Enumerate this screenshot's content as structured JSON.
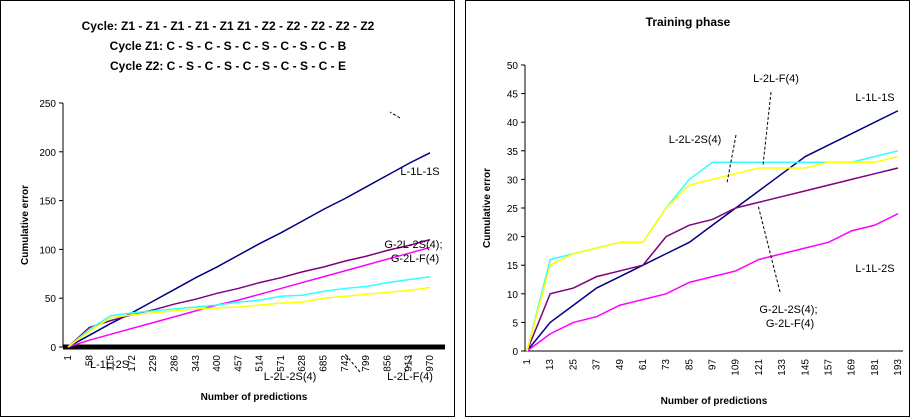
{
  "chart_data": [
    {
      "type": "line",
      "title": [
        "Cycle: Z1 - Z1 - Z1 - Z1 - Z1 Z1 - Z2 - Z2 - Z2 - Z2 - Z2",
        "Cycle Z1: C - S - C - S - C - S - C - S - C - B",
        "Cycle Z2: C - S - C - S - C - S - C - S - C - E"
      ],
      "x_label": "Number of predictions",
      "y_label": "Cumulative error",
      "categories": [
        "1",
        "58",
        "115",
        "172",
        "229",
        "286",
        "343",
        "400",
        "457",
        "514",
        "571",
        "628",
        "685",
        "742",
        "799",
        "856",
        "913",
        "970"
      ],
      "ylim": [
        0,
        250
      ],
      "yticks": [
        0,
        50,
        100,
        150,
        200,
        250
      ],
      "series": [
        {
          "name": "L-1L-1S",
          "color": "#000080",
          "values": [
            0,
            12,
            24,
            35,
            47,
            59,
            71,
            82,
            94,
            106,
            117,
            129,
            141,
            152,
            164,
            176,
            188,
            199
          ]
        },
        {
          "name": "G-2L-2S(4); G-2L-F(4)",
          "color": "#800080",
          "values": [
            0,
            20,
            27,
            33,
            38,
            44,
            49,
            55,
            60,
            66,
            71,
            77,
            82,
            88,
            93,
            99,
            104,
            110
          ]
        },
        {
          "name": "L-1L-2S",
          "color": "#ff00ff",
          "values": [
            0,
            7,
            13,
            19,
            25,
            31,
            37,
            43,
            48,
            54,
            60,
            66,
            72,
            78,
            84,
            90,
            96,
            102
          ]
        },
        {
          "name": "L-2L-2S(4)",
          "color": "#33ffff",
          "values": [
            0,
            18,
            32,
            35,
            37,
            39,
            41,
            43,
            46,
            48,
            52,
            53,
            57,
            60,
            62,
            66,
            69,
            72
          ]
        },
        {
          "name": "L-2L-F(4)",
          "color": "#ffff00",
          "values": [
            0,
            16,
            30,
            33,
            35,
            37,
            39,
            40,
            41,
            43,
            45,
            46,
            50,
            52,
            54,
            56,
            58,
            61
          ]
        }
      ]
    },
    {
      "type": "line",
      "title": [
        "Training phase"
      ],
      "x_label": "Number of predictions",
      "y_label": "Cumulative error",
      "categories": [
        "1",
        "13",
        "25",
        "37",
        "49",
        "61",
        "73",
        "85",
        "97",
        "109",
        "121",
        "133",
        "145",
        "157",
        "169",
        "181",
        "193"
      ],
      "ylim": [
        0,
        50
      ],
      "yticks": [
        0,
        5,
        10,
        15,
        20,
        25,
        30,
        35,
        40,
        45,
        50
      ],
      "series": [
        {
          "name": "L-1L-1S",
          "color": "#000080",
          "values": [
            0,
            5,
            8,
            11,
            13,
            15,
            17,
            19,
            22,
            25,
            28,
            31,
            34,
            36,
            38,
            40,
            42
          ]
        },
        {
          "name": "G-2L-2S(4); G-2L-F(4)",
          "color": "#800080",
          "values": [
            0,
            10,
            11,
            13,
            14,
            15,
            20,
            22,
            23,
            25,
            26,
            27,
            28,
            29,
            30,
            31,
            32
          ]
        },
        {
          "name": "L-1L-2S",
          "color": "#ff00ff",
          "values": [
            0,
            3,
            5,
            6,
            8,
            9,
            10,
            12,
            13,
            14,
            16,
            17,
            18,
            19,
            21,
            22,
            24
          ]
        },
        {
          "name": "L-2L-2S(4)",
          "color": "#33ffff",
          "values": [
            0,
            16,
            17,
            18,
            19,
            19,
            25,
            30,
            33,
            33,
            33,
            33,
            33,
            33,
            33,
            34,
            35
          ]
        },
        {
          "name": "L-2L-F(4)",
          "color": "#ffff00",
          "values": [
            0,
            15,
            17,
            18,
            19,
            19,
            25,
            29,
            30,
            31,
            32,
            32,
            32,
            33,
            33,
            33,
            34
          ]
        }
      ]
    }
  ]
}
